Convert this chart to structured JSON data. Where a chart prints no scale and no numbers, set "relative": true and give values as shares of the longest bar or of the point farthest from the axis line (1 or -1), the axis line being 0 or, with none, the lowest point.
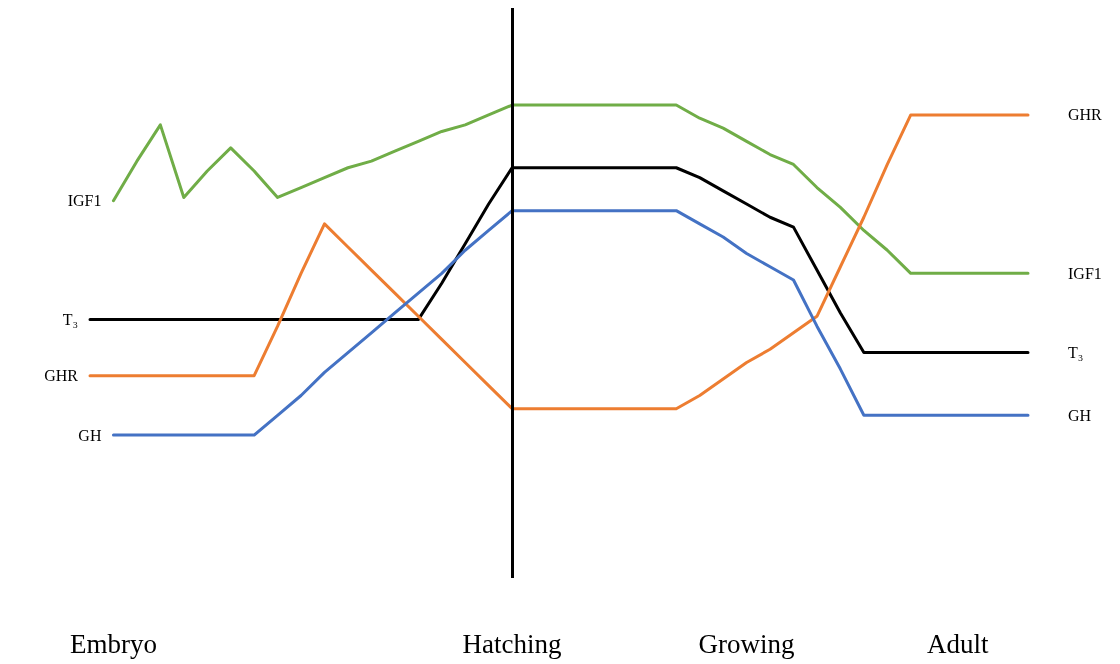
{
  "chart_data": {
    "type": "line",
    "relative": true,
    "marker": "none",
    "line_style": "solid",
    "grid": false,
    "legend": false,
    "categories": [
      null,
      "Embryo",
      null,
      null,
      null,
      null,
      null,
      null,
      null,
      null,
      null,
      null,
      null,
      null,
      null,
      null,
      null,
      null,
      "Hatching",
      null,
      null,
      null,
      null,
      null,
      null,
      null,
      null,
      null,
      "Growing",
      null,
      null,
      null,
      null,
      null,
      null,
      null,
      null,
      "Adult",
      null,
      null,
      null
    ],
    "ref_lines": [
      {
        "axis": "x",
        "value": "Hatching",
        "label": null,
        "color": "#000000"
      }
    ],
    "series": [
      {
        "name": "IGF1",
        "color": "#70ad47",
        "values": [
          null,
          0.71,
          0.83,
          0.94,
          0.72,
          0.8,
          0.87,
          0.8,
          0.72,
          0.75,
          0.78,
          0.81,
          0.83,
          0.86,
          0.89,
          0.92,
          0.94,
          0.97,
          1,
          1,
          1,
          1,
          1,
          1,
          1,
          1,
          0.96,
          0.93,
          0.89,
          0.85,
          0.82,
          0.75,
          0.69,
          0.62,
          0.56,
          0.49,
          0.49,
          0.49,
          0.49,
          0.49,
          0.49
        ]
      },
      {
        "name": "T₃",
        "color": "#000000",
        "values": [
          0.35,
          0.35,
          0.35,
          0.35,
          0.35,
          0.35,
          0.35,
          0.35,
          0.35,
          0.35,
          0.35,
          0.35,
          0.35,
          0.35,
          0.35,
          0.46,
          0.58,
          0.7,
          0.81,
          0.81,
          0.81,
          0.81,
          0.81,
          0.81,
          0.81,
          0.81,
          0.78,
          0.74,
          0.7,
          0.66,
          0.63,
          0.5,
          0.37,
          0.25,
          0.25,
          0.25,
          0.25,
          0.25,
          0.25,
          0.25,
          0.25
        ]
      },
      {
        "name": "GHR",
        "color": "#ed7d31",
        "values": [
          0.18,
          0.18,
          0.18,
          0.18,
          0.18,
          0.18,
          0.18,
          0.18,
          0.33,
          0.49,
          0.64,
          0.57,
          0.5,
          0.43,
          0.36,
          0.29,
          0.22,
          0.15,
          0.08,
          0.08,
          0.08,
          0.08,
          0.08,
          0.08,
          0.08,
          0.08,
          0.12,
          0.17,
          0.22,
          0.26,
          0.31,
          0.36,
          0.51,
          0.66,
          0.82,
          0.97,
          0.97,
          0.97,
          0.97,
          0.97,
          0.97
        ]
      },
      {
        "name": "GH",
        "color": "#4472c4",
        "values": [
          null,
          0,
          0,
          0,
          0,
          0,
          0,
          0,
          0.06,
          0.12,
          0.19,
          0.25,
          0.31,
          0.37,
          0.43,
          0.49,
          0.56,
          0.62,
          0.68,
          0.68,
          0.68,
          0.68,
          0.68,
          0.68,
          0.68,
          0.68,
          0.64,
          0.6,
          0.55,
          0.51,
          0.47,
          0.33,
          0.2,
          0.06,
          0.06,
          0.06,
          0.06,
          0.06,
          0.06,
          0.06,
          0.06
        ]
      }
    ]
  }
}
